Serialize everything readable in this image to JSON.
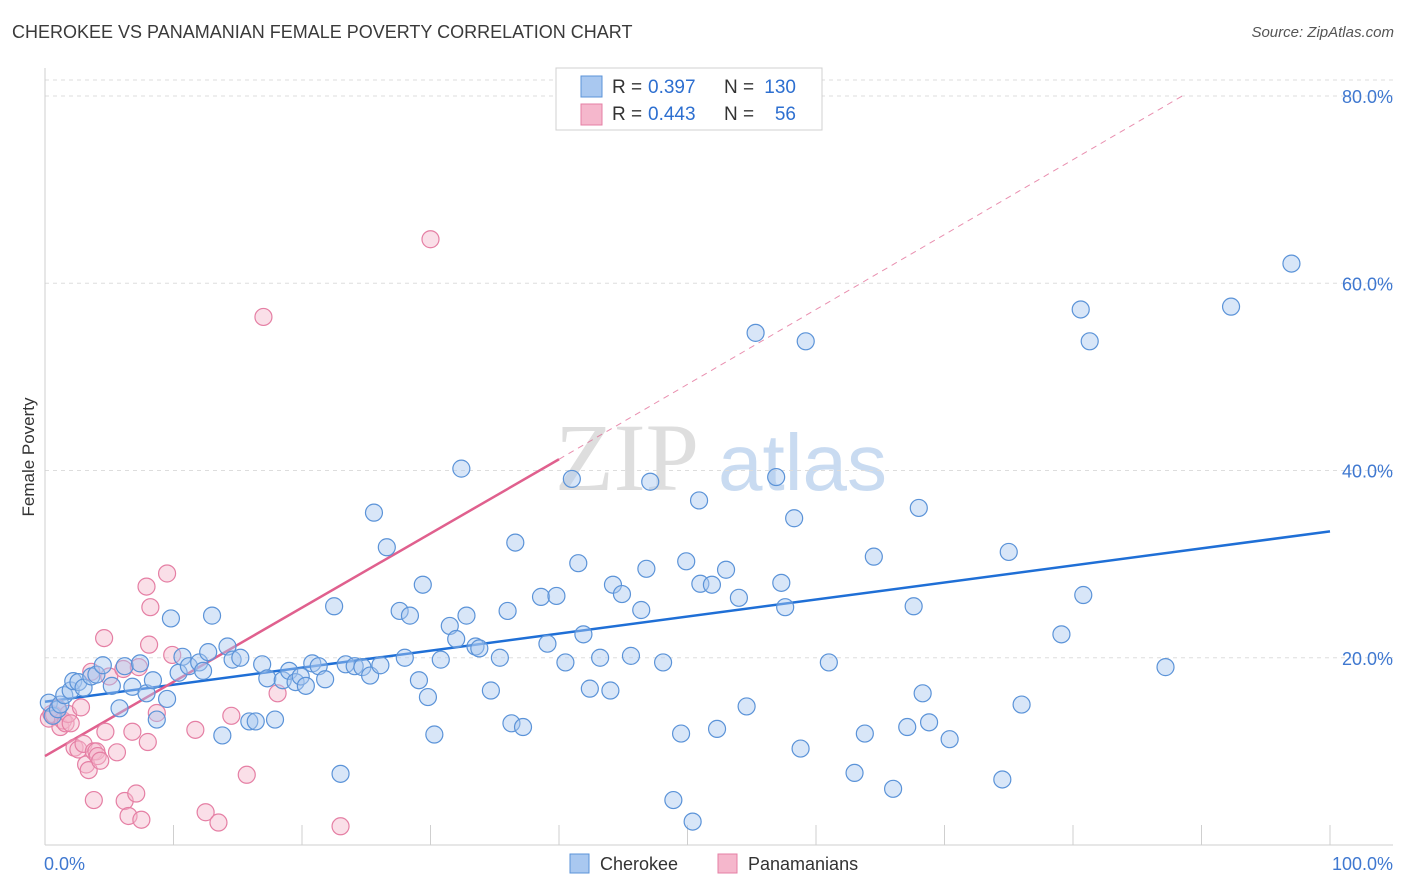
{
  "header": {
    "title": "CHEROKEE VS PANAMANIAN FEMALE POVERTY CORRELATION CHART",
    "source": "Source: ZipAtlas.com"
  },
  "watermark": {
    "part1": "ZIP",
    "part2": "atlas"
  },
  "colors": {
    "blue": "#1f6fd6",
    "blue_fill": "#a9c8f0",
    "blue_stroke": "#5b93d8",
    "pink": "#e0608e",
    "pink_fill": "#f5b7cc",
    "pink_stroke": "#e57fa4",
    "grid": "#dddddd",
    "tick_label": "#3f78d0"
  },
  "chart_data": {
    "type": "scatter",
    "title": "CHEROKEE VS PANAMANIAN FEMALE POVERTY CORRELATION CHART",
    "xlabel": "",
    "ylabel": "Female Poverty",
    "xlim": [
      0,
      100
    ],
    "ylim": [
      0,
      80
    ],
    "x_tick_labels": [
      "0.0%",
      "100.0%"
    ],
    "y_tick_values": [
      20,
      40,
      60,
      80
    ],
    "y_tick_labels": [
      "20.0%",
      "40.0%",
      "60.0%",
      "80.0%"
    ],
    "legend_stats": [
      {
        "r_label": "R =",
        "r_value": "0.397",
        "n_label": "N =",
        "n_value": "130"
      },
      {
        "r_label": "R =",
        "r_value": "0.443",
        "n_label": "N =",
        "n_value": "56"
      }
    ],
    "bottom_legend": [
      "Cherokee",
      "Panamanians"
    ],
    "series": [
      {
        "name": "Cherokee",
        "trend": {
          "x0": 0,
          "y0": 15.3,
          "x1": 100,
          "y1": 33.5
        },
        "points": [
          [
            0.3,
            15.2
          ],
          [
            0.6,
            13.8
          ],
          [
            1.0,
            14.5
          ],
          [
            1.2,
            15.0
          ],
          [
            1.5,
            16.0
          ],
          [
            2.0,
            16.5
          ],
          [
            2.2,
            17.5
          ],
          [
            2.6,
            17.4
          ],
          [
            3.0,
            16.8
          ],
          [
            3.6,
            18.0
          ],
          [
            4.0,
            18.2
          ],
          [
            4.5,
            19.2
          ],
          [
            5.2,
            17.0
          ],
          [
            5.8,
            14.6
          ],
          [
            6.2,
            19.1
          ],
          [
            6.8,
            16.9
          ],
          [
            7.4,
            19.4
          ],
          [
            7.9,
            16.2
          ],
          [
            8.4,
            17.6
          ],
          [
            8.7,
            13.4
          ],
          [
            9.5,
            15.6
          ],
          [
            9.8,
            24.2
          ],
          [
            10.4,
            18.4
          ],
          [
            10.7,
            20.1
          ],
          [
            11.2,
            19.1
          ],
          [
            12.0,
            19.5
          ],
          [
            12.3,
            18.6
          ],
          [
            12.7,
            20.6
          ],
          [
            13.0,
            24.5
          ],
          [
            13.8,
            11.7
          ],
          [
            14.2,
            21.2
          ],
          [
            14.6,
            19.8
          ],
          [
            15.2,
            20.0
          ],
          [
            15.9,
            13.2
          ],
          [
            16.4,
            13.2
          ],
          [
            16.9,
            19.3
          ],
          [
            17.3,
            17.8
          ],
          [
            17.9,
            13.4
          ],
          [
            18.5,
            17.6
          ],
          [
            19.0,
            18.6
          ],
          [
            19.5,
            17.4
          ],
          [
            19.9,
            18.0
          ],
          [
            20.3,
            17.0
          ],
          [
            20.8,
            19.4
          ],
          [
            21.3,
            19.1
          ],
          [
            21.8,
            17.7
          ],
          [
            22.5,
            25.5
          ],
          [
            23.0,
            7.6
          ],
          [
            23.4,
            19.3
          ],
          [
            24.1,
            19.1
          ],
          [
            24.7,
            19.0
          ],
          [
            25.3,
            18.1
          ],
          [
            25.6,
            35.5
          ],
          [
            26.1,
            19.2
          ],
          [
            26.6,
            31.8
          ],
          [
            27.6,
            25.0
          ],
          [
            28.0,
            20.0
          ],
          [
            28.4,
            24.5
          ],
          [
            29.1,
            17.6
          ],
          [
            29.4,
            27.8
          ],
          [
            29.8,
            15.8
          ],
          [
            30.3,
            11.8
          ],
          [
            30.8,
            19.8
          ],
          [
            31.5,
            23.4
          ],
          [
            32.0,
            22.0
          ],
          [
            32.4,
            40.2
          ],
          [
            32.8,
            24.5
          ],
          [
            33.5,
            21.2
          ],
          [
            33.8,
            21.0
          ],
          [
            34.7,
            16.5
          ],
          [
            35.4,
            20.0
          ],
          [
            36.0,
            25.0
          ],
          [
            36.3,
            13.0
          ],
          [
            36.6,
            32.3
          ],
          [
            37.2,
            12.6
          ],
          [
            38.6,
            26.5
          ],
          [
            39.1,
            21.5
          ],
          [
            39.8,
            26.6
          ],
          [
            40.5,
            19.5
          ],
          [
            41.0,
            39.1
          ],
          [
            41.5,
            30.1
          ],
          [
            41.9,
            22.5
          ],
          [
            42.4,
            16.7
          ],
          [
            43.2,
            20.0
          ],
          [
            44.0,
            16.5
          ],
          [
            44.2,
            27.8
          ],
          [
            44.9,
            26.8
          ],
          [
            45.6,
            20.2
          ],
          [
            46.4,
            25.1
          ],
          [
            46.8,
            29.5
          ],
          [
            47.1,
            38.8
          ],
          [
            48.1,
            19.5
          ],
          [
            48.9,
            4.8
          ],
          [
            49.5,
            11.9
          ],
          [
            49.9,
            30.3
          ],
          [
            50.4,
            2.5
          ],
          [
            50.9,
            36.8
          ],
          [
            51.0,
            27.9
          ],
          [
            51.9,
            27.8
          ],
          [
            52.3,
            12.4
          ],
          [
            53.0,
            29.4
          ],
          [
            54.0,
            26.4
          ],
          [
            54.6,
            14.8
          ],
          [
            55.3,
            54.7
          ],
          [
            56.9,
            39.3
          ],
          [
            57.3,
            28.0
          ],
          [
            57.6,
            25.4
          ],
          [
            58.3,
            34.9
          ],
          [
            58.8,
            10.3
          ],
          [
            59.2,
            53.8
          ],
          [
            61.0,
            19.5
          ],
          [
            63.0,
            7.7
          ],
          [
            63.8,
            11.9
          ],
          [
            64.5,
            30.8
          ],
          [
            66.0,
            6.0
          ],
          [
            67.1,
            12.6
          ],
          [
            67.6,
            25.5
          ],
          [
            68.0,
            36.0
          ],
          [
            68.3,
            16.2
          ],
          [
            68.8,
            13.1
          ],
          [
            70.4,
            11.3
          ],
          [
            74.5,
            7.0
          ],
          [
            75.0,
            31.3
          ],
          [
            76.0,
            15.0
          ],
          [
            79.1,
            22.5
          ],
          [
            80.6,
            57.2
          ],
          [
            80.8,
            26.7
          ],
          [
            81.3,
            53.8
          ],
          [
            87.2,
            19.0
          ],
          [
            92.3,
            57.5
          ],
          [
            97.0,
            62.1
          ]
        ]
      },
      {
        "name": "Panamanians",
        "trend": {
          "x0": 0,
          "y0": 9.5,
          "x1": 40,
          "y1": 41.2,
          "ext_x1": 88.5,
          "ext_y1": 80
        },
        "points": [
          [
            0.3,
            13.5
          ],
          [
            0.5,
            14.0
          ],
          [
            0.7,
            13.9
          ],
          [
            1.0,
            14.6
          ],
          [
            1.2,
            12.6
          ],
          [
            1.4,
            13.3
          ],
          [
            1.6,
            13.0
          ],
          [
            1.8,
            14.0
          ],
          [
            2.0,
            13.0
          ],
          [
            2.3,
            10.4
          ],
          [
            2.6,
            10.2
          ],
          [
            2.8,
            14.7
          ],
          [
            3.0,
            10.8
          ],
          [
            3.2,
            8.6
          ],
          [
            3.4,
            8.0
          ],
          [
            3.6,
            18.5
          ],
          [
            3.8,
            4.8
          ],
          [
            3.8,
            10.0
          ],
          [
            4.0,
            10.0
          ],
          [
            4.1,
            9.5
          ],
          [
            4.3,
            9.0
          ],
          [
            4.6,
            22.1
          ],
          [
            4.7,
            12.1
          ],
          [
            5.0,
            18.0
          ],
          [
            5.6,
            9.9
          ],
          [
            6.1,
            18.8
          ],
          [
            6.2,
            4.7
          ],
          [
            6.5,
            3.1
          ],
          [
            6.8,
            12.1
          ],
          [
            7.1,
            5.5
          ],
          [
            7.3,
            19.0
          ],
          [
            7.5,
            2.7
          ],
          [
            7.9,
            27.6
          ],
          [
            8.0,
            11.0
          ],
          [
            8.1,
            21.4
          ],
          [
            8.2,
            25.4
          ],
          [
            8.7,
            14.1
          ],
          [
            9.5,
            29.0
          ],
          [
            9.9,
            20.3
          ],
          [
            11.7,
            12.3
          ],
          [
            12.5,
            3.5
          ],
          [
            13.5,
            2.4
          ],
          [
            14.5,
            13.8
          ],
          [
            15.7,
            7.5
          ],
          [
            18.1,
            16.2
          ],
          [
            23.0,
            2.0
          ],
          [
            30.0,
            64.7
          ],
          [
            17.0,
            56.4
          ]
        ]
      }
    ]
  }
}
